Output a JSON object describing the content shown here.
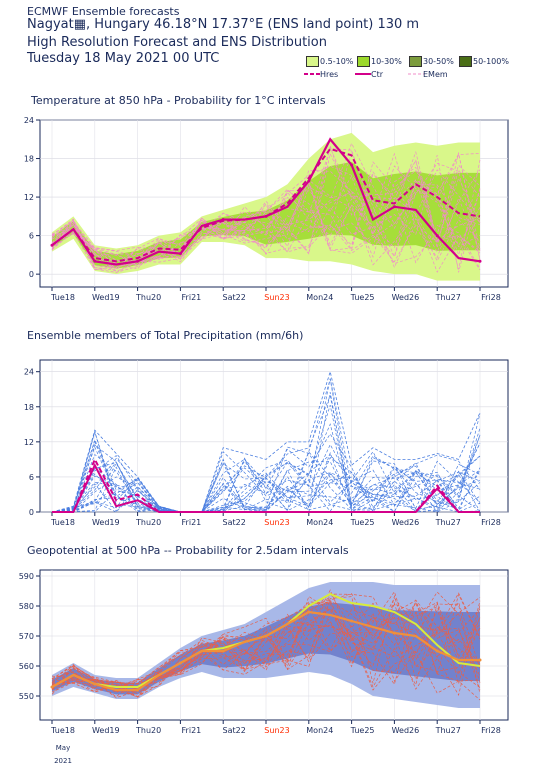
{
  "header": {
    "line1": "ECMWF Ensemble forecasts",
    "line2": "Nagyat▦, Hungary 46.18°N 17.37°E (ENS land point) 130 m",
    "line3": "High Resolution Forecast and ENS Distribution",
    "line4": "Tuesday 18 May 2021 00 UTC"
  },
  "legend": {
    "prob": [
      {
        "label": "0.5-10%",
        "color": "#d9f78a"
      },
      {
        "label": "10-30%",
        "color": "#9cd92b"
      },
      {
        "label": "30-50%",
        "color": "#7c9c3c"
      },
      {
        "label": "50-100%",
        "color": "#4a6e16"
      }
    ],
    "lines": [
      {
        "label": "Hres",
        "color": "#d3008a"
      },
      {
        "label": "Ctr",
        "color": "#d3008a"
      },
      {
        "label": "EMem",
        "color": "#f08cc8"
      }
    ]
  },
  "colors": {
    "accent": "#1a2a5a",
    "sunday": "#ff2a00",
    "ens_blue": "#4a7ee0",
    "geo_fill_light": "#a8b8e8",
    "geo_fill_dark": "#6878c8",
    "geo_hres": "#d8ec3a"
  },
  "day_labels": [
    "Tue18",
    "Wed19",
    "Thu20",
    "Fri21",
    "Sat22",
    "Sun23",
    "Mon24",
    "Tue25",
    "Wed26",
    "Thu27",
    "Fri28"
  ],
  "date_footer": {
    "month": "May",
    "year": "2021"
  },
  "chart_data": [
    {
      "type": "line",
      "title": "Temperature at 850 hPa - Probability for 1°C intervals",
      "ylim": [
        -2,
        24
      ],
      "yticks": [
        "0",
        "6",
        "12",
        "18",
        "24"
      ],
      "x": [
        0,
        0.5,
        1,
        1.5,
        2,
        2.5,
        3,
        3.5,
        4,
        4.5,
        5,
        5.5,
        6,
        6.5,
        7,
        7.5,
        8,
        8.5,
        9,
        9.5,
        10
      ],
      "series": [
        {
          "name": "Hres",
          "values": [
            4.5,
            7.0,
            2.5,
            2.0,
            2.5,
            4.0,
            3.8,
            7.2,
            8.3,
            8.5,
            9.0,
            11.0,
            15.0,
            19.5,
            18.5,
            11.5,
            11.0,
            14.0,
            12.0,
            9.5,
            9.0
          ]
        },
        {
          "name": "Ctr",
          "values": [
            4.5,
            7.0,
            2.0,
            1.5,
            2.0,
            3.5,
            3.2,
            7.5,
            8.5,
            8.5,
            9.0,
            10.5,
            14.5,
            21.0,
            17.0,
            8.5,
            10.5,
            10.0,
            6.0,
            2.5,
            2.0
          ]
        }
      ],
      "spread": {
        "upper": [
          6.5,
          9.0,
          4.5,
          4.0,
          4.5,
          6.0,
          6.5,
          9.0,
          10.0,
          11.0,
          12.0,
          14.0,
          18.0,
          21.0,
          22.0,
          19.0,
          20.0,
          20.5,
          20.0,
          20.5,
          20.5
        ],
        "lower": [
          3.5,
          5.5,
          0.5,
          0.0,
          0.5,
          1.5,
          1.5,
          5.0,
          5.0,
          4.5,
          2.5,
          2.5,
          2.0,
          2.0,
          1.5,
          0.5,
          0.0,
          0.0,
          -1.0,
          -1.0,
          -1.0
        ]
      }
    },
    {
      "type": "line",
      "title": "Ensemble members of Total Precipitation (mm/6h)",
      "ylim": [
        0,
        26
      ],
      "yticks": [
        "0",
        "6",
        "12",
        "18",
        "24"
      ],
      "x": [
        0,
        0.5,
        1,
        1.5,
        2,
        2.5,
        3,
        3.5,
        4,
        4.5,
        5,
        5.5,
        6,
        6.5,
        7,
        7.5,
        8,
        8.5,
        9,
        9.5,
        10
      ],
      "series": [
        {
          "name": "Hres",
          "values": [
            0,
            0,
            9.0,
            2.0,
            3.0,
            0,
            0,
            0,
            0,
            0,
            0,
            0,
            0,
            0,
            0,
            0,
            0,
            0,
            4.5,
            0,
            0
          ]
        },
        {
          "name": "Ctr",
          "values": [
            0,
            0,
            8.0,
            1.0,
            2.0,
            0,
            0,
            0,
            0,
            0,
            0,
            0,
            0,
            0,
            0,
            0,
            0,
            0,
            4.0,
            0,
            0
          ]
        },
        {
          "name": "EMem max",
          "values": [
            0,
            1.0,
            14.0,
            10.0,
            6.0,
            1.0,
            0,
            0,
            11.0,
            10.0,
            9.0,
            12.0,
            12.0,
            24.0,
            8.0,
            11.0,
            9.0,
            9.0,
            10.0,
            9.0,
            17.0
          ]
        }
      ]
    },
    {
      "type": "line",
      "title": "Geopotential at 500 hPa -- Probability for 2.5dam intervals",
      "ylim": [
        542,
        592
      ],
      "yticks": [
        "550",
        "560",
        "570",
        "580",
        "590"
      ],
      "x": [
        0,
        0.5,
        1,
        1.5,
        2,
        2.5,
        3,
        3.5,
        4,
        4.5,
        5,
        5.5,
        6,
        6.5,
        7,
        7.5,
        8,
        8.5,
        9,
        9.5,
        10
      ],
      "series": [
        {
          "name": "Hres",
          "values": [
            553,
            557,
            554,
            553,
            553,
            557,
            561,
            565,
            566,
            568,
            570,
            574,
            580,
            584,
            581,
            580,
            578,
            574,
            567,
            561,
            560
          ]
        },
        {
          "name": "Ctr",
          "values": [
            553,
            557,
            554,
            552,
            552,
            557,
            561,
            565,
            565,
            568,
            570,
            574,
            578,
            577,
            575,
            573,
            571,
            570,
            565,
            562,
            562
          ]
        }
      ],
      "spread": {
        "upper": [
          557,
          561,
          557,
          556,
          556,
          561,
          566,
          570,
          572,
          574,
          578,
          582,
          586,
          588,
          588,
          588,
          587,
          587,
          587,
          587,
          587
        ],
        "lower": [
          550,
          553,
          551,
          549,
          549,
          553,
          556,
          558,
          556,
          556,
          556,
          557,
          558,
          557,
          554,
          550,
          549,
          548,
          547,
          546,
          546
        ]
      }
    }
  ]
}
